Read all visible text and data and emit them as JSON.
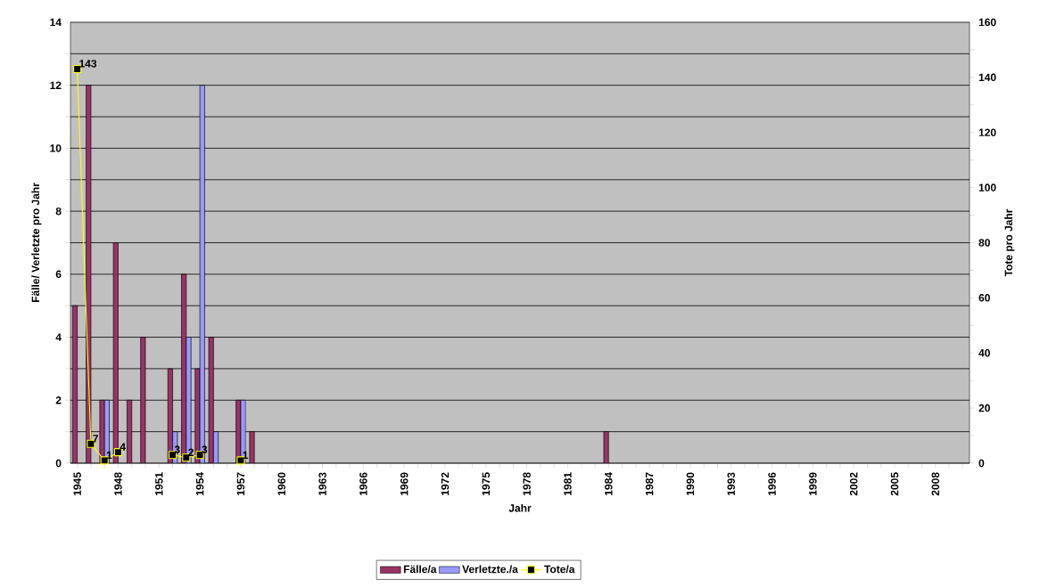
{
  "chart_data": {
    "type": "bar",
    "xlabel": "Jahr",
    "ylabel": "Fälle/ Verletzte pro Jahr",
    "y2label": "Tote pro Jahr",
    "categories": [
      "1945",
      null,
      null,
      "1948",
      null,
      null,
      "1951",
      null,
      null,
      "1954",
      null,
      null,
      "1957",
      null,
      null,
      "1960",
      null,
      null,
      "1963",
      null,
      null,
      "1966",
      null,
      null,
      "1969",
      null,
      null,
      "1972",
      null,
      null,
      "1975",
      null,
      null,
      "1978",
      null,
      null,
      "1981",
      null,
      null,
      "1984",
      null,
      null,
      "1987",
      null,
      null,
      "1990",
      null,
      null,
      "1993",
      null,
      null,
      "1996",
      null,
      null,
      "1999",
      null,
      null,
      "2002",
      null,
      null,
      "2005",
      null,
      null,
      "2008",
      null,
      null
    ],
    "series": [
      {
        "name": "Fälle/a",
        "color": "#993366",
        "values": [
          5,
          12,
          2,
          7,
          2,
          4,
          null,
          3,
          6,
          3,
          4,
          null,
          2,
          1,
          null,
          null,
          null,
          null,
          null,
          null,
          null,
          null,
          null,
          null,
          null,
          null,
          null,
          null,
          null,
          null,
          null,
          null,
          null,
          null,
          null,
          null,
          null,
          null,
          null,
          1,
          null,
          null,
          null,
          null,
          null,
          null,
          null,
          null,
          null,
          null,
          null,
          null,
          null,
          null,
          null,
          null,
          null,
          null,
          null,
          null,
          null,
          null,
          null,
          null,
          null,
          null
        ]
      },
      {
        "name": "Verletzte./a",
        "color": "#9999ff",
        "values": [
          null,
          null,
          2,
          null,
          null,
          null,
          null,
          1,
          4,
          12,
          1,
          null,
          2,
          null,
          null,
          null,
          null,
          null,
          null,
          null,
          null,
          null,
          null,
          null,
          null,
          null,
          null,
          null,
          null,
          null,
          null,
          null,
          null,
          null,
          null,
          null,
          null,
          null,
          null,
          null,
          null,
          null,
          null,
          null,
          null,
          null,
          null,
          null,
          null,
          null,
          null,
          null,
          null,
          null,
          null,
          null,
          null,
          null,
          null,
          null,
          null,
          null,
          null,
          null,
          null,
          null
        ]
      },
      {
        "name": "Tote/a",
        "type": "line",
        "axis": "y2",
        "color": "#ffff00",
        "marker": "square",
        "data_labels": true,
        "values": [
          143,
          7,
          1,
          4,
          null,
          null,
          null,
          3,
          2,
          3,
          null,
          null,
          1,
          null,
          null,
          null,
          null,
          null,
          null,
          null,
          null,
          null,
          null,
          null,
          null,
          null,
          null,
          null,
          null,
          null,
          null,
          null,
          null,
          null,
          null,
          null,
          null,
          null,
          null,
          null,
          null,
          null,
          null,
          null,
          null,
          null,
          null,
          null,
          null,
          null,
          null,
          null,
          null,
          null,
          null,
          null,
          null,
          null,
          null,
          null,
          null,
          null,
          null,
          null,
          null,
          null
        ]
      }
    ],
    "ylim": [
      0,
      14
    ],
    "yticks": [
      0,
      {
        "value": 1,
        "label": null
      },
      2,
      {
        "value": 3,
        "label": null
      },
      4,
      {
        "value": 5,
        "label": null
      },
      6,
      {
        "value": 7,
        "label": null
      },
      8,
      {
        "value": 9,
        "label": null
      },
      10,
      {
        "value": 11,
        "label": null
      },
      12,
      {
        "value": 13,
        "label": null
      },
      14
    ],
    "y2lim": [
      0,
      160
    ],
    "y2ticks": [
      0,
      {
        "value": 10,
        "label": null
      },
      20,
      {
        "value": 30,
        "label": null
      },
      40,
      {
        "value": 50,
        "label": null
      },
      60,
      {
        "value": 70,
        "label": null
      },
      80,
      {
        "value": 90,
        "label": null
      },
      100,
      {
        "value": 110,
        "label": null
      },
      120,
      {
        "value": 130,
        "label": null
      },
      140,
      {
        "value": 150,
        "label": null
      },
      160
    ],
    "grid": "y",
    "legend": "bottom"
  }
}
